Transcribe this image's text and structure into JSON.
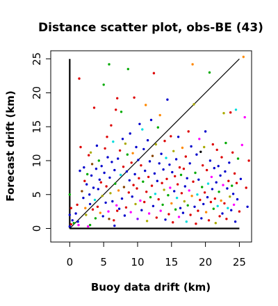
{
  "chart_data": {
    "type": "scatter",
    "title": "Distance scatter plot, obs-BE (43)",
    "xlabel": "Buoy data drift (km)",
    "ylabel": "Forecast drift (km)",
    "xlim": [
      -2.8,
      26.8
    ],
    "ylim": [
      -2.0,
      26.2
    ],
    "x_ticks": [
      0,
      5,
      10,
      15,
      20,
      25
    ],
    "y_ticks": [
      0,
      5,
      10,
      15,
      20,
      25
    ],
    "x_tick_labels": [
      "0",
      "5",
      "10",
      "15",
      "20",
      "25"
    ],
    "y_tick_labels": [
      "0",
      "5",
      "10",
      "15",
      "20",
      "25"
    ],
    "reference_lines": {
      "diagonal": [
        [
          0,
          0
        ],
        [
          25,
          25
        ]
      ],
      "y_axis_bar": [
        [
          0,
          0
        ],
        [
          0,
          25
        ]
      ],
      "x_axis_bar": [
        [
          0,
          0
        ],
        [
          25,
          0
        ]
      ]
    },
    "grid": false,
    "legend": "none",
    "colors": [
      "#0000cc",
      "#dd0000",
      "#00aa00",
      "#aaaa00",
      "#ff00ff",
      "#00dddd",
      "#ff8800",
      "#8800ff",
      "#884400",
      "#000000",
      "#ff6699",
      "#00cc66"
    ],
    "points": [
      [
        0.0,
        0.3,
        0
      ],
      [
        0.2,
        0.6,
        1
      ],
      [
        0.4,
        1.2,
        0
      ],
      [
        0.6,
        0.8,
        2
      ],
      [
        0.9,
        2.2,
        0
      ],
      [
        1.1,
        3.5,
        1
      ],
      [
        1.3,
        0.5,
        4
      ],
      [
        1.4,
        22.1,
        1
      ],
      [
        1.5,
        8.5,
        0
      ],
      [
        1.6,
        12.0,
        1
      ],
      [
        1.8,
        5.5,
        8
      ],
      [
        2.0,
        4.5,
        0
      ],
      [
        2.1,
        9.0,
        0
      ],
      [
        2.2,
        7.0,
        1
      ],
      [
        2.3,
        3.0,
        6
      ],
      [
        2.4,
        2.0,
        3
      ],
      [
        2.5,
        6.5,
        0
      ],
      [
        2.6,
        8.0,
        2
      ],
      [
        2.7,
        0.3,
        4
      ],
      [
        2.8,
        10.8,
        1
      ],
      [
        2.9,
        5.0,
        0
      ],
      [
        3.0,
        3.6,
        0
      ],
      [
        3.1,
        11.2,
        3
      ],
      [
        3.2,
        7.8,
        0
      ],
      [
        3.3,
        9.5,
        8
      ],
      [
        3.4,
        2.8,
        1
      ],
      [
        3.5,
        6.0,
        0
      ],
      [
        3.6,
        17.8,
        1
      ],
      [
        3.7,
        4.2,
        5
      ],
      [
        3.8,
        1.5,
        2
      ],
      [
        3.9,
        8.8,
        0
      ],
      [
        4.0,
        12.2,
        0
      ],
      [
        4.1,
        3.2,
        1
      ],
      [
        4.2,
        5.8,
        0
      ],
      [
        4.3,
        10.0,
        2
      ],
      [
        4.4,
        7.2,
        0
      ],
      [
        4.5,
        2.3,
        6
      ],
      [
        4.6,
        6.8,
        1
      ],
      [
        4.7,
        9.2,
        0
      ],
      [
        4.8,
        4.8,
        3
      ],
      [
        4.9,
        1.8,
        0
      ],
      [
        5.0,
        21.2,
        2
      ],
      [
        5.1,
        8.2,
        0
      ],
      [
        5.2,
        11.8,
        1
      ],
      [
        5.3,
        3.8,
        0
      ],
      [
        5.4,
        6.2,
        1
      ],
      [
        5.5,
        13.5,
        1
      ],
      [
        5.6,
        10.5,
        0
      ],
      [
        5.7,
        2.5,
        4
      ],
      [
        5.8,
        24.2,
        2
      ],
      [
        5.9,
        7.5,
        0
      ],
      [
        6.0,
        5.2,
        3
      ],
      [
        6.1,
        15.2,
        1
      ],
      [
        6.2,
        9.8,
        0
      ],
      [
        6.3,
        4.0,
        0
      ],
      [
        6.4,
        12.8,
        5
      ],
      [
        6.5,
        1.2,
        1
      ],
      [
        6.6,
        8.6,
        0
      ],
      [
        6.7,
        6.6,
        2
      ],
      [
        6.8,
        17.5,
        1
      ],
      [
        6.9,
        3.4,
        4
      ],
      [
        7.0,
        19.2,
        1
      ],
      [
        7.1,
        10.3,
        0
      ],
      [
        7.2,
        5.6,
        6
      ],
      [
        7.3,
        2.9,
        0
      ],
      [
        7.4,
        11.5,
        1
      ],
      [
        7.5,
        7.9,
        5
      ],
      [
        7.6,
        17.2,
        2
      ],
      [
        7.7,
        4.4,
        0
      ],
      [
        7.8,
        13.2,
        0
      ],
      [
        7.9,
        9.1,
        1
      ],
      [
        8.0,
        6.1,
        8
      ],
      [
        8.1,
        1.9,
        0
      ],
      [
        8.2,
        12.5,
        3
      ],
      [
        8.3,
        3.1,
        1
      ],
      [
        8.4,
        8.4,
        0
      ],
      [
        8.5,
        10.9,
        2
      ],
      [
        8.6,
        23.5,
        2
      ],
      [
        8.7,
        5.3,
        1
      ],
      [
        8.8,
        7.1,
        0
      ],
      [
        8.9,
        14.0,
        0
      ],
      [
        9.0,
        2.4,
        4
      ],
      [
        9.1,
        9.7,
        1
      ],
      [
        9.2,
        4.7,
        0
      ],
      [
        9.3,
        11.1,
        6
      ],
      [
        9.4,
        6.4,
        1
      ],
      [
        9.5,
        19.3,
        1
      ],
      [
        9.6,
        8.0,
        0
      ],
      [
        9.7,
        3.6,
        3
      ],
      [
        9.8,
        12.0,
        0
      ],
      [
        9.9,
        5.9,
        1
      ],
      [
        10.0,
        1.4,
        7
      ],
      [
        10.1,
        10.1,
        0
      ],
      [
        10.2,
        7.4,
        1
      ],
      [
        10.3,
        15.4,
        0
      ],
      [
        10.4,
        4.1,
        4
      ],
      [
        10.5,
        9.3,
        1
      ],
      [
        10.6,
        2.7,
        0
      ],
      [
        10.7,
        14.6,
        5
      ],
      [
        10.8,
        6.9,
        2
      ],
      [
        10.9,
        11.7,
        0
      ],
      [
        11.0,
        3.9,
        1
      ],
      [
        11.1,
        8.5,
        0
      ],
      [
        11.2,
        18.2,
        6
      ],
      [
        11.3,
        5.4,
        1
      ],
      [
        11.4,
        1.1,
        3
      ],
      [
        11.5,
        13.0,
        0
      ],
      [
        11.6,
        7.6,
        1
      ],
      [
        11.7,
        2.2,
        4
      ],
      [
        11.8,
        9.9,
        0
      ],
      [
        11.9,
        4.6,
        2
      ],
      [
        12.0,
        16.0,
        0
      ],
      [
        12.1,
        6.3,
        1
      ],
      [
        12.2,
        10.7,
        8
      ],
      [
        12.3,
        3.3,
        0
      ],
      [
        12.4,
        22.9,
        1
      ],
      [
        12.5,
        8.1,
        0
      ],
      [
        12.6,
        5.1,
        5
      ],
      [
        12.7,
        12.4,
        3
      ],
      [
        12.8,
        1.6,
        1
      ],
      [
        12.9,
        7.0,
        0
      ],
      [
        13.0,
        14.9,
        2
      ],
      [
        13.1,
        4.3,
        1
      ],
      [
        13.2,
        9.6,
        0
      ],
      [
        13.3,
        16.7,
        6
      ],
      [
        13.4,
        2.6,
        4
      ],
      [
        13.5,
        11.0,
        0
      ],
      [
        13.6,
        6.7,
        1
      ],
      [
        13.7,
        3.5,
        2
      ],
      [
        13.8,
        8.7,
        0
      ],
      [
        13.9,
        5.7,
        3
      ],
      [
        14.0,
        12.9,
        1
      ],
      [
        14.1,
        1.3,
        0
      ],
      [
        14.2,
        10.4,
        5
      ],
      [
        14.3,
        7.3,
        1
      ],
      [
        14.4,
        19.0,
        0
      ],
      [
        14.5,
        4.9,
        2
      ],
      [
        14.6,
        2.1,
        1
      ],
      [
        14.7,
        9.4,
        0
      ],
      [
        14.8,
        6.0,
        4
      ],
      [
        14.9,
        13.6,
        1
      ],
      [
        15.0,
        3.7,
        6
      ],
      [
        15.1,
        8.3,
        0
      ],
      [
        15.2,
        0.9,
        1
      ],
      [
        15.3,
        11.4,
        3
      ],
      [
        15.4,
        5.5,
        0
      ],
      [
        15.5,
        7.7,
        1
      ],
      [
        15.6,
        2.8,
        2
      ],
      [
        15.7,
        10.2,
        0
      ],
      [
        15.8,
        4.5,
        5
      ],
      [
        15.9,
        6.5,
        1
      ],
      [
        16.0,
        13.5,
        0
      ],
      [
        16.1,
        1.7,
        4
      ],
      [
        16.2,
        9.0,
        1
      ],
      [
        16.3,
        3.0,
        0
      ],
      [
        16.4,
        7.9,
        2
      ],
      [
        16.5,
        5.2,
        1
      ],
      [
        16.6,
        11.9,
        6
      ],
      [
        16.7,
        2.3,
        0
      ],
      [
        16.8,
        8.8,
        1
      ],
      [
        16.9,
        4.0,
        3
      ],
      [
        17.0,
        6.2,
        0
      ],
      [
        17.1,
        10.6,
        1
      ],
      [
        17.2,
        1.0,
        5
      ],
      [
        17.3,
        7.4,
        0
      ],
      [
        17.4,
        3.4,
        2
      ],
      [
        17.5,
        14.3,
        1
      ],
      [
        17.6,
        5.6,
        4
      ],
      [
        17.7,
        9.6,
        0
      ],
      [
        17.8,
        2.0,
        1
      ],
      [
        17.9,
        12.1,
        0
      ],
      [
        18.0,
        4.8,
        6
      ],
      [
        18.1,
        24.2,
        6
      ],
      [
        18.2,
        6.9,
        1
      ],
      [
        18.3,
        18.3,
        3
      ],
      [
        18.4,
        3.2,
        0
      ],
      [
        18.5,
        8.2,
        2
      ],
      [
        18.6,
        0.7,
        1
      ],
      [
        18.7,
        10.9,
        0
      ],
      [
        18.8,
        5.0,
        5
      ],
      [
        18.9,
        2.6,
        1
      ],
      [
        19.0,
        7.2,
        0
      ],
      [
        19.1,
        13.2,
        4
      ],
      [
        19.2,
        4.2,
        1
      ],
      [
        19.3,
        11.3,
        9
      ],
      [
        19.4,
        1.5,
        0
      ],
      [
        19.5,
        6.1,
        2
      ],
      [
        19.6,
        9.3,
        1
      ],
      [
        19.7,
        3.6,
        0
      ],
      [
        19.8,
        12.0,
        3
      ],
      [
        19.9,
        5.3,
        1
      ],
      [
        20.0,
        14.3,
        0
      ],
      [
        20.1,
        2.4,
        6
      ],
      [
        20.2,
        8.6,
        1
      ],
      [
        20.3,
        4.6,
        0
      ],
      [
        20.4,
        6.6,
        5
      ],
      [
        20.5,
        1.2,
        1
      ],
      [
        20.6,
        23.0,
        2
      ],
      [
        20.7,
        10.0,
        0
      ],
      [
        20.8,
        3.9,
        1
      ],
      [
        20.9,
        7.6,
        4
      ],
      [
        21.0,
        5.8,
        0
      ],
      [
        21.1,
        12.4,
        1
      ],
      [
        21.2,
        2.9,
        2
      ],
      [
        21.3,
        8.9,
        0
      ],
      [
        21.4,
        4.4,
        1
      ],
      [
        21.5,
        0.8,
        3
      ],
      [
        21.6,
        6.8,
        0
      ],
      [
        21.7,
        11.6,
        1
      ],
      [
        21.8,
        3.3,
        5
      ],
      [
        21.9,
        9.2,
        0
      ],
      [
        22.0,
        5.4,
        2
      ],
      [
        22.1,
        1.8,
        1
      ],
      [
        22.2,
        7.8,
        0
      ],
      [
        22.3,
        4.1,
        6
      ],
      [
        22.4,
        10.5,
        1
      ],
      [
        22.5,
        2.2,
        0
      ],
      [
        22.6,
        6.4,
        4
      ],
      [
        22.7,
        17.0,
        3
      ],
      [
        22.8,
        3.7,
        1
      ],
      [
        22.9,
        8.4,
        0
      ],
      [
        23.0,
        12.6,
        2
      ],
      [
        23.1,
        1.4,
        1
      ],
      [
        23.2,
        5.9,
        0
      ],
      [
        23.3,
        3.0,
        5
      ],
      [
        23.4,
        7.0,
        1
      ],
      [
        23.5,
        9.7,
        0
      ],
      [
        23.6,
        4.7,
        3
      ],
      [
        23.7,
        17.1,
        1
      ],
      [
        23.8,
        2.7,
        0
      ],
      [
        23.9,
        6.3,
        2
      ],
      [
        24.0,
        11.2,
        1
      ],
      [
        24.1,
        5.1,
        0
      ],
      [
        24.2,
        3.5,
        4
      ],
      [
        24.3,
        8.1,
        1
      ],
      [
        24.4,
        1.0,
        0
      ],
      [
        24.5,
        17.5,
        5
      ],
      [
        24.6,
        6.7,
        1
      ],
      [
        24.7,
        4.3,
        0
      ],
      [
        24.8,
        10.3,
        2
      ],
      [
        25.0,
        2.5,
        1
      ],
      [
        25.2,
        7.3,
        0
      ],
      [
        25.4,
        12.3,
        4
      ],
      [
        25.6,
        25.3,
        6
      ],
      [
        25.8,
        16.4,
        4
      ],
      [
        26.0,
        6.0,
        1
      ],
      [
        26.2,
        3.2,
        0
      ],
      [
        26.4,
        10.0,
        1
      ],
      [
        0.0,
        5.0,
        2
      ],
      [
        0.0,
        2.0,
        0
      ],
      [
        0.2,
        3.0,
        1
      ],
      [
        1.2,
        1.0,
        0
      ],
      [
        3.0,
        0.5,
        2
      ],
      [
        5.8,
        1.4,
        8
      ],
      [
        6.6,
        0.4,
        0
      ],
      [
        7.0,
        2.6,
        1
      ]
    ]
  }
}
